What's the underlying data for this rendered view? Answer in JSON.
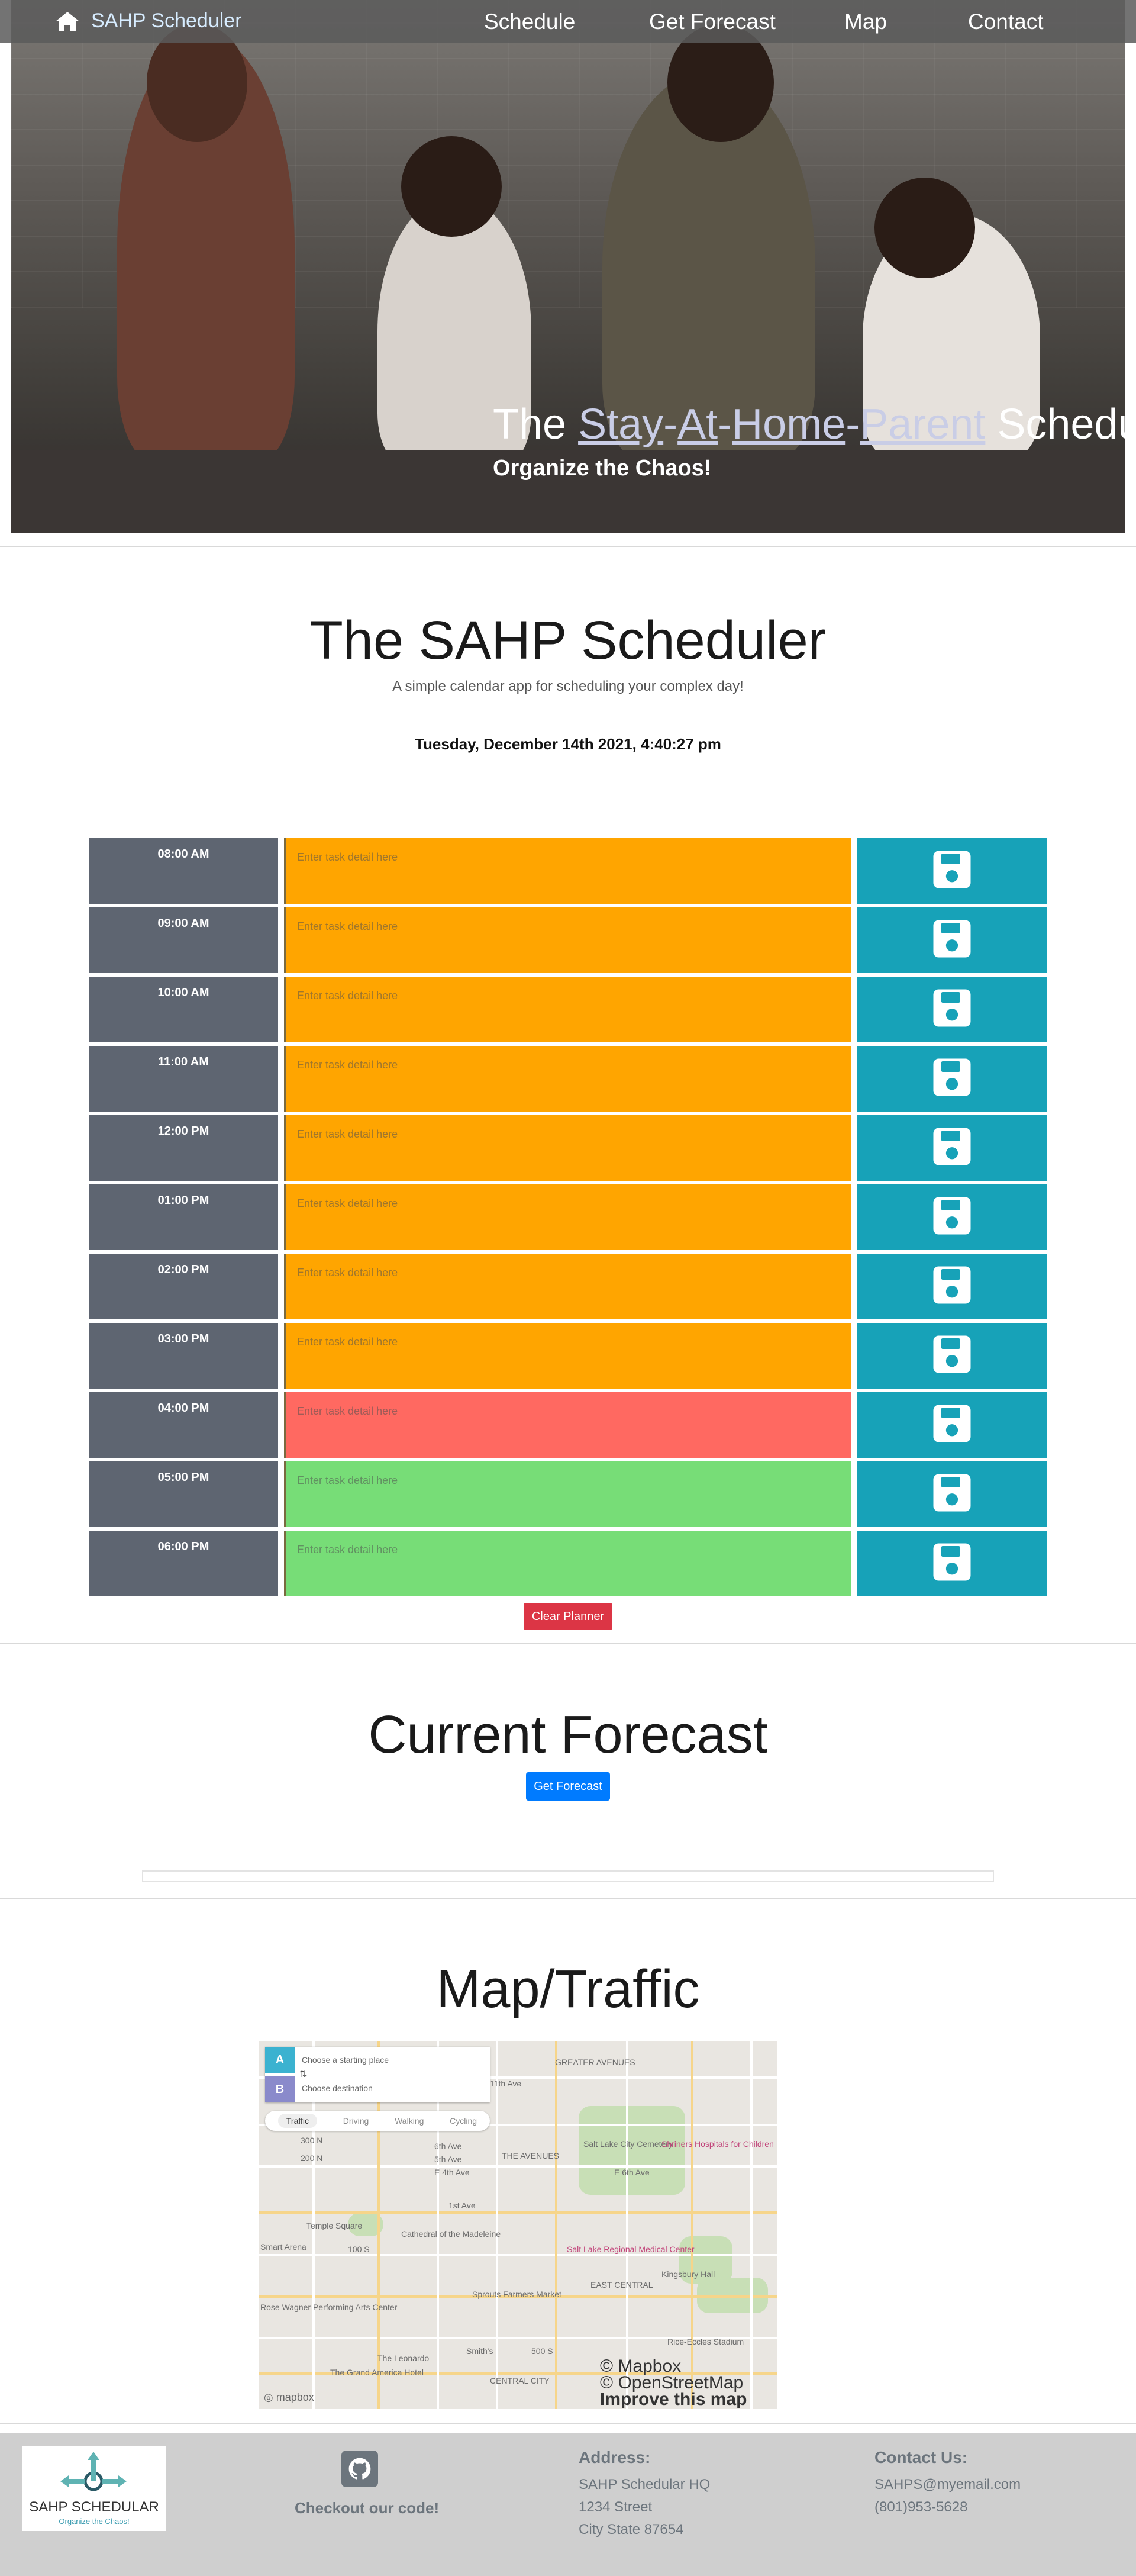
{
  "nav": {
    "brand": "SAHP Scheduler",
    "links": [
      "Schedule",
      "Get Forecast",
      "Map",
      "Contact"
    ]
  },
  "hero": {
    "title_parts": [
      "The ",
      "Stay",
      "-",
      "At",
      "-",
      "Home",
      "-",
      "Parent",
      " Scheduler"
    ],
    "subtitle": "Organize the Chaos!"
  },
  "scheduler": {
    "title": "The SAHP Scheduler",
    "subtitle": "A simple calendar app for scheduling your complex day!",
    "current_date": "Tuesday, December 14th 2021, 4:40:27 pm",
    "placeholder": "Enter task detail here",
    "rows": [
      {
        "hour": "08:00 AM",
        "status": "past"
      },
      {
        "hour": "09:00 AM",
        "status": "past"
      },
      {
        "hour": "10:00 AM",
        "status": "past"
      },
      {
        "hour": "11:00 AM",
        "status": "past"
      },
      {
        "hour": "12:00 PM",
        "status": "past"
      },
      {
        "hour": "01:00 PM",
        "status": "past"
      },
      {
        "hour": "02:00 PM",
        "status": "past"
      },
      {
        "hour": "03:00 PM",
        "status": "past"
      },
      {
        "hour": "04:00 PM",
        "status": "present"
      },
      {
        "hour": "05:00 PM",
        "status": "future"
      },
      {
        "hour": "06:00 PM",
        "status": "future"
      }
    ],
    "save_icon": "floppy-disk-icon",
    "clear_label": "Clear Planner",
    "colors": {
      "past": "#ffa500",
      "present": "#ff6961",
      "future": "#77dd77",
      "save": "#17a2b8",
      "hour": "#5e6571"
    }
  },
  "forecast": {
    "title": "Current Forecast",
    "button_label": "Get Forecast"
  },
  "map": {
    "title": "Map/Traffic",
    "start_placeholder": "Choose a starting place",
    "dest_placeholder": "Choose destination",
    "point_a": "A",
    "point_b": "B",
    "modes": [
      "Traffic",
      "Driving",
      "Walking",
      "Cycling"
    ],
    "attribution": [
      "© Mapbox",
      "© OpenStreetMap",
      "Improve this map"
    ],
    "labels": [
      "GREATER AVENUES",
      "11th Ave",
      "THE AVENUES",
      "Salt Lake City Cemetery",
      "Shriners Hospitals for Children",
      "6th Ave",
      "5th Ave",
      "E 4th Ave",
      "E 6th Ave",
      "1st Ave",
      "Temple Square",
      "Cathedral of the Madeleine",
      "Salt Lake Regional Medical Center",
      "Kingsbury Hall",
      "EAST CENTRAL",
      "Sprouts Farmers Market",
      "Rose Wagner Performing Arts Center",
      "The Leonardo",
      "Smith's",
      "The Grand America Hotel",
      "CENTRAL CITY",
      "Rice-Eccles Stadium",
      "Smart Arena",
      "500 S",
      "100 S",
      "200 N",
      "300 N"
    ]
  },
  "footer": {
    "logo_title": "SAHP SCHEDULAR",
    "logo_tagline": "Organize the Chaos!",
    "code_link": "Checkout our code!",
    "address_heading": "Address:",
    "address_lines": [
      "SAHP Schedular HQ",
      "1234 Street",
      "City State 87654"
    ],
    "contact_heading": "Contact Us:",
    "contact_lines": [
      "SAHPS@myemail.com",
      "(801)953-5628"
    ]
  }
}
